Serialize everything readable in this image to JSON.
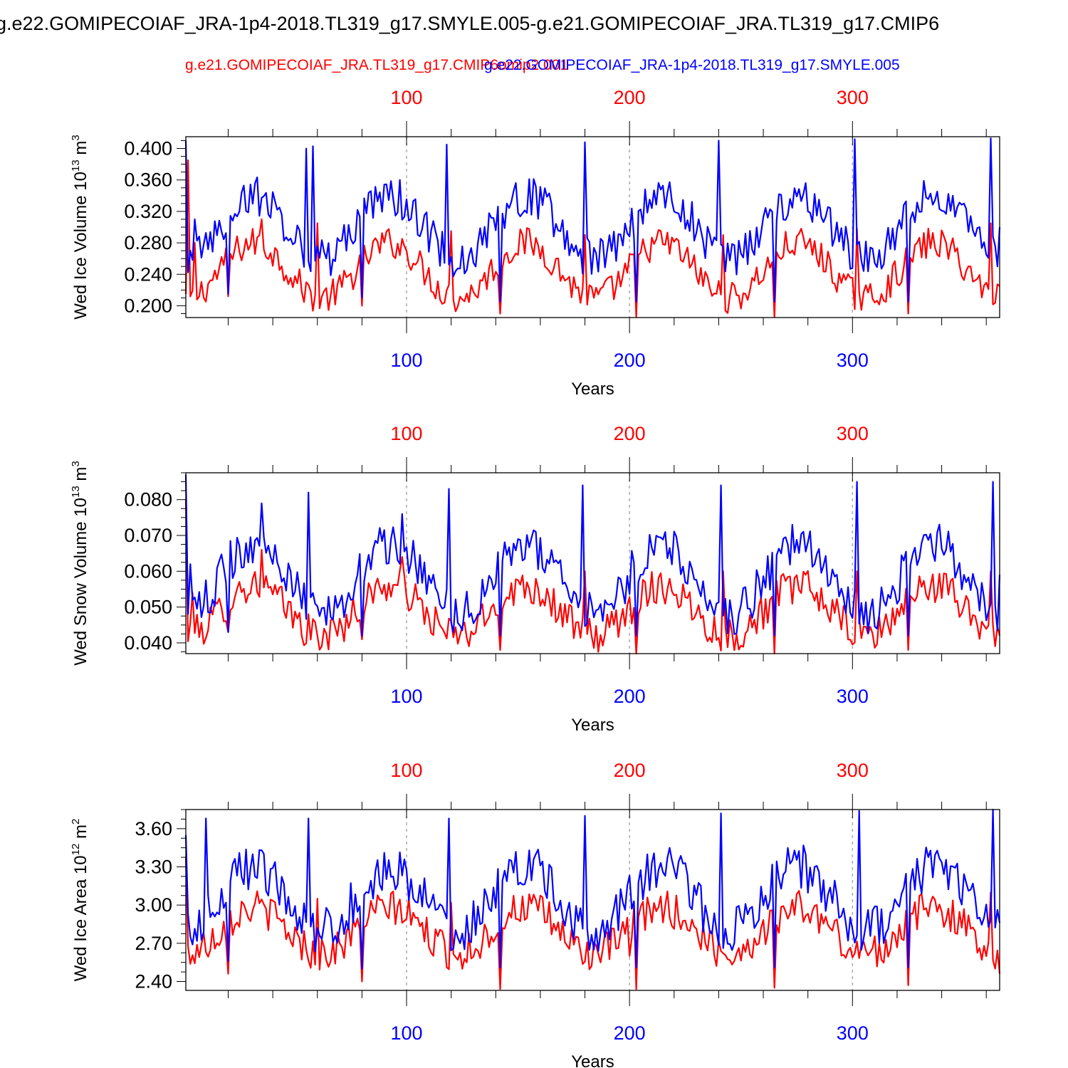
{
  "title": "g.e22.GOMIPECOIAF_JRA-1p4-2018.TL319_g17.SMYLE.005-g.e21.GOMIPECOIAF_JRA.TL319_g17.CMIP6",
  "case_left": "g.e21.GOMIPECOIAF_JRA.TL319_g17.CMIP6omip2.001",
  "case_right": "g.e22.GOMIPECOIAF_JRA-1p4-2018.TL319_g17.SMYLE.005",
  "colors": {
    "red_series": "#ff0000",
    "blue_series": "#0000ff",
    "axis": "#000000",
    "ref_line": "#aaaaaa"
  },
  "chart_data": [
    {
      "type": "line",
      "ylabel": "Wed Ice Volume 10^13 m^3",
      "ylabel_main": "Wed Ice Volume 10",
      "ylabel_exp": "13",
      "ylabel_unit": "m",
      "ylabel_unit_exp": "3",
      "xlabel": "Years",
      "xlim": [
        1,
        366
      ],
      "ylim": [
        0.185,
        0.415
      ],
      "yticks": [
        0.2,
        0.24,
        0.28,
        0.32,
        0.36,
        0.4
      ],
      "yticklabels": [
        "0.200",
        "0.240",
        "0.280",
        "0.320",
        "0.360",
        "0.400"
      ],
      "xticks_top": [
        100,
        200,
        300
      ],
      "xticks_bottom": [
        100,
        200,
        300
      ],
      "ref_lines_x": [
        100,
        200,
        300
      ],
      "series": [
        {
          "color": "#ff0000",
          "period": 61,
          "base": 0.245,
          "amp": 0.035,
          "noise": 0.02,
          "start": 0.385,
          "anchors": [
            [
              2,
              0.385
            ],
            [
              5,
              0.28
            ],
            [
              20,
              0.212
            ],
            [
              35,
              0.31
            ],
            [
              60,
              0.305
            ],
            [
              80,
              0.2
            ],
            [
              100,
              0.27
            ],
            [
              120,
              0.295
            ],
            [
              142,
              0.19
            ],
            [
              180,
              0.29
            ],
            [
              203,
              0.186
            ],
            [
              242,
              0.29
            ],
            [
              265,
              0.186
            ],
            [
              302,
              0.298
            ],
            [
              325,
              0.19
            ],
            [
              362,
              0.305
            ],
            [
              366,
              0.225
            ]
          ]
        },
        {
          "color": "#0000ff",
          "period": 61,
          "base": 0.3,
          "amp": 0.04,
          "noise": 0.025,
          "start": 0.41,
          "anchors": [
            [
              1,
              0.41
            ],
            [
              5,
              0.31
            ],
            [
              20,
              0.215
            ],
            [
              55,
              0.4
            ],
            [
              58,
              0.403
            ],
            [
              80,
              0.21
            ],
            [
              97,
              0.36
            ],
            [
              118,
              0.405
            ],
            [
              142,
              0.205
            ],
            [
              180,
              0.408
            ],
            [
              203,
              0.205
            ],
            [
              240,
              0.41
            ],
            [
              265,
              0.205
            ],
            [
              301,
              0.412
            ],
            [
              325,
              0.205
            ],
            [
              362,
              0.413
            ],
            [
              366,
              0.3
            ]
          ]
        }
      ]
    },
    {
      "type": "line",
      "ylabel": "Wed Snow Volume 10^13 m^3",
      "ylabel_main": "Wed Snow Volume 10",
      "ylabel_exp": "13",
      "ylabel_unit": "m",
      "ylabel_unit_exp": "3",
      "xlabel": "Years",
      "xlim": [
        1,
        366
      ],
      "ylim": [
        0.037,
        0.0875
      ],
      "yticks": [
        0.04,
        0.05,
        0.06,
        0.07,
        0.08
      ],
      "yticklabels": [
        "0.040",
        "0.050",
        "0.060",
        "0.070",
        "0.080"
      ],
      "xticks_top": [
        100,
        200,
        300
      ],
      "xticks_bottom": [
        100,
        200,
        300
      ],
      "ref_lines_x": [
        100,
        200,
        300
      ],
      "series": [
        {
          "color": "#ff0000",
          "period": 61,
          "base": 0.049,
          "amp": 0.007,
          "noise": 0.005,
          "start": 0.08,
          "anchors": [
            [
              1,
              0.08
            ],
            [
              4,
              0.054
            ],
            [
              20,
              0.043
            ],
            [
              35,
              0.066
            ],
            [
              60,
              0.042
            ],
            [
              80,
              0.041
            ],
            [
              98,
              0.064
            ],
            [
              142,
              0.038
            ],
            [
              180,
              0.06
            ],
            [
              203,
              0.037
            ],
            [
              242,
              0.06
            ],
            [
              265,
              0.037
            ],
            [
              302,
              0.06
            ],
            [
              325,
              0.038
            ],
            [
              362,
              0.06
            ],
            [
              366,
              0.042
            ]
          ]
        },
        {
          "color": "#0000ff",
          "period": 61,
          "base": 0.058,
          "amp": 0.01,
          "noise": 0.006,
          "start": 0.087,
          "anchors": [
            [
              1,
              0.087
            ],
            [
              3,
              0.062
            ],
            [
              20,
              0.043
            ],
            [
              35,
              0.079
            ],
            [
              56,
              0.082
            ],
            [
              80,
              0.042
            ],
            [
              98,
              0.076
            ],
            [
              119,
              0.083
            ],
            [
              142,
              0.042
            ],
            [
              179,
              0.084
            ],
            [
              203,
              0.042
            ],
            [
              241,
              0.084
            ],
            [
              265,
              0.042
            ],
            [
              302,
              0.085
            ],
            [
              325,
              0.042
            ],
            [
              363,
              0.085
            ],
            [
              366,
              0.059
            ]
          ]
        }
      ]
    },
    {
      "type": "line",
      "ylabel": "Wed Ice Area 10^12 m^2",
      "ylabel_main": "Wed Ice Area 10",
      "ylabel_exp": "12",
      "ylabel_unit": "m",
      "ylabel_unit_exp": "2",
      "xlabel": "Years",
      "xlim": [
        1,
        366
      ],
      "ylim": [
        2.33,
        3.75
      ],
      "yticks": [
        2.4,
        2.7,
        3.0,
        3.3,
        3.6
      ],
      "yticklabels": [
        "2.40",
        "2.70",
        "3.00",
        "3.30",
        "3.60"
      ],
      "xticks_top": [
        100,
        200,
        300
      ],
      "xticks_bottom": [
        100,
        200,
        300
      ],
      "ref_lines_x": [
        100,
        200,
        300
      ],
      "series": [
        {
          "color": "#ff0000",
          "period": 61,
          "base": 2.8,
          "amp": 0.18,
          "noise": 0.14,
          "start": 3.38,
          "anchors": [
            [
              1,
              3.38
            ],
            [
              20,
              2.46
            ],
            [
              60,
              3.05
            ],
            [
              80,
              2.4
            ],
            [
              120,
              3.02
            ],
            [
              142,
              2.34
            ],
            [
              200,
              2.6
            ],
            [
              203,
              2.34
            ],
            [
              265,
              2.35
            ],
            [
              325,
              2.37
            ],
            [
              362,
              3.1
            ],
            [
              366,
              2.46
            ]
          ]
        },
        {
          "color": "#0000ff",
          "period": 61,
          "base": 3.05,
          "amp": 0.25,
          "noise": 0.18,
          "start": 3.55,
          "anchors": [
            [
              1,
              3.55
            ],
            [
              10,
              3.68
            ],
            [
              20,
              2.56
            ],
            [
              56,
              3.68
            ],
            [
              80,
              2.5
            ],
            [
              119,
              3.68
            ],
            [
              142,
              2.51
            ],
            [
              180,
              3.7
            ],
            [
              203,
              2.51
            ],
            [
              241,
              3.72
            ],
            [
              265,
              2.51
            ],
            [
              303,
              3.74
            ],
            [
              325,
              2.51
            ],
            [
              363,
              3.75
            ],
            [
              366,
              2.86
            ]
          ]
        }
      ]
    }
  ]
}
